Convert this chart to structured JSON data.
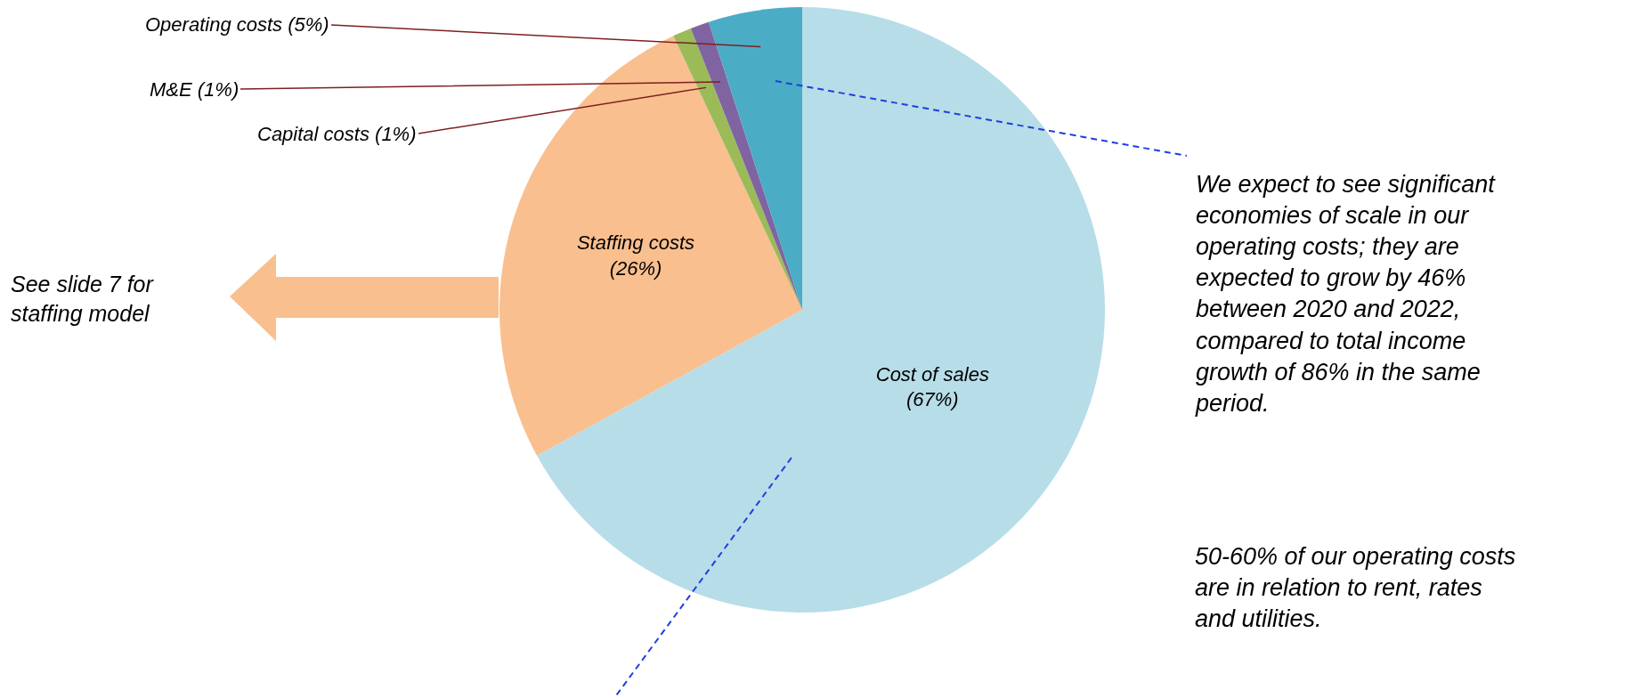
{
  "chart_data": {
    "type": "pie",
    "categories": [
      "Cost of sales",
      "Staffing costs",
      "Capital costs",
      "M&E",
      "Operating costs"
    ],
    "values": [
      67,
      26,
      1,
      1,
      5
    ],
    "colors": [
      "#b7dde8",
      "#f9bf8f",
      "#9bbb59",
      "#8064a2",
      "#4bacc6"
    ],
    "value_labels": [
      "(67%)",
      "(26%)",
      "(1%)",
      "(1%)",
      "(5%)"
    ],
    "annotations": [
      "See slide 7 for\nstaffing model",
      "We expect to see significant\neconomies of scale in our\noperating costs; they are\nexpected to grow by 46%\nbetween 2020 and 2022,\ncompared to total income\ngrowth of 86% in the same\nperiod.",
      "50-60% of our operating costs\nare in relation to rent, rates\nand utilities."
    ],
    "legend": false
  }
}
